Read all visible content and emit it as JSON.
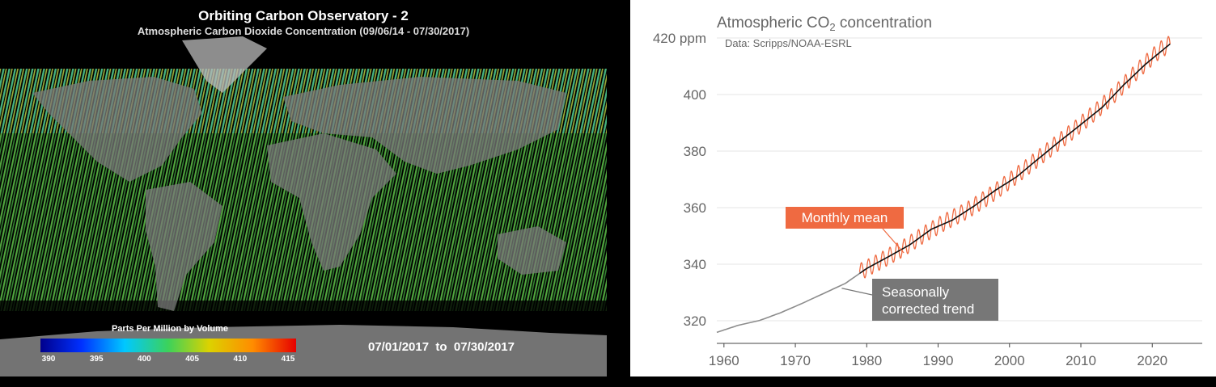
{
  "map": {
    "title": "Orbiting Carbon Observatory - 2",
    "subtitle": "Atmospheric Carbon Dioxide Concentration (09/06/14 - 07/30/2017)",
    "colorbar_label": "Parts Per Million by Volume",
    "colorbar_ticks": [
      "390",
      "395",
      "400",
      "405",
      "410",
      "415"
    ],
    "colorbar_colors": [
      "#00008c",
      "#0030ff",
      "#00c8ff",
      "#3cd25a",
      "#dcd200",
      "#ff8c00",
      "#e60000"
    ],
    "date_range": "07/01/2017  to  07/30/2017"
  },
  "chart_data": {
    "type": "line",
    "title": "Atmospheric CO₂ concentration",
    "source_note": "Data: Scripps/NOAA-ESRL",
    "ylabel": "",
    "xlabel": "",
    "xlim": [
      1959,
      2027
    ],
    "ylim": [
      312,
      422
    ],
    "x_ticks": [
      1960,
      1970,
      1980,
      1990,
      2000,
      2010,
      2020
    ],
    "y_ticks": [
      {
        "value": 320,
        "label": "320"
      },
      {
        "value": 340,
        "label": "340"
      },
      {
        "value": 360,
        "label": "360"
      },
      {
        "value": 380,
        "label": "380"
      },
      {
        "value": 400,
        "label": "400"
      },
      {
        "value": 420,
        "label": "420 ppm"
      }
    ],
    "grid": true,
    "annotations": [
      {
        "text": "Monthly mean",
        "color": "#ef6a41"
      },
      {
        "text": "Seasonally corrected trend",
        "lines": [
          "Seasonally",
          "corrected trend"
        ],
        "color": "#777777"
      }
    ],
    "series": [
      {
        "name": "Seasonally corrected trend",
        "color": "#8c8c8c",
        "x": [
          1959,
          1962,
          1965,
          1968,
          1971,
          1974,
          1977,
          1980,
          1983,
          1986,
          1989,
          1992,
          1995,
          1998,
          2001,
          2004,
          2007,
          2010,
          2013,
          2016,
          2019,
          2022.5
        ],
        "y": [
          315.9,
          318.4,
          320.1,
          322.9,
          326.2,
          329.7,
          333.2,
          338.5,
          342.6,
          346.8,
          352.3,
          355.6,
          360.5,
          366.1,
          370.9,
          377.2,
          383.4,
          389.4,
          395.5,
          403.4,
          410.6,
          417.9
        ]
      },
      {
        "name": "Monthly mean",
        "color": "#ef6a41",
        "seasonal_amplitude": 3,
        "x": [
          1979,
          1982,
          1985,
          1988,
          1991,
          1994,
          1997,
          2000,
          2003,
          2006,
          2009,
          2012,
          2015,
          2018,
          2021,
          2022.5
        ],
        "y": [
          337.2,
          341.2,
          345.5,
          350.5,
          355.0,
          358.9,
          363.8,
          369.4,
          375.4,
          381.4,
          387.4,
          393.8,
          400.8,
          408.6,
          415.6,
          417.9
        ]
      }
    ]
  }
}
